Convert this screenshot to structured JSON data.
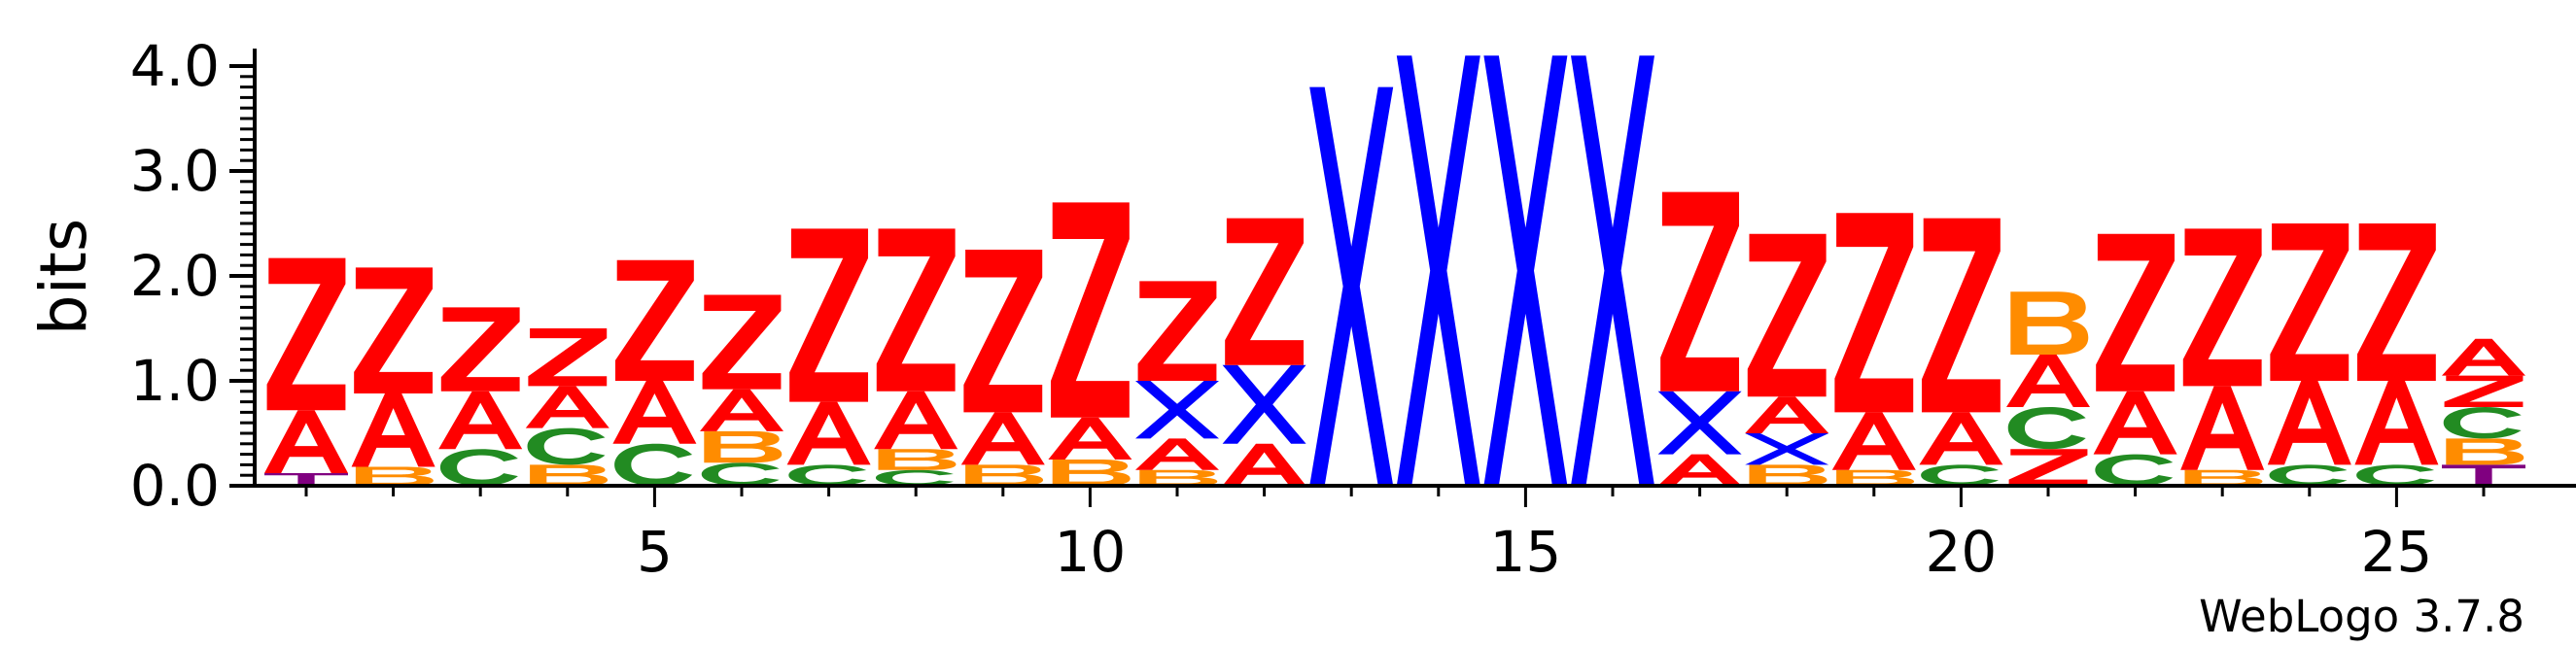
{
  "chart_data": {
    "type": "sequence-logo",
    "ylabel": "bits",
    "ylim": [
      0,
      4.0
    ],
    "yticks": [
      "0.0",
      "1.0",
      "2.0",
      "3.0",
      "4.0"
    ],
    "xticks": [
      5,
      10,
      15,
      20,
      25
    ],
    "credit": "WebLogo 3.7.8",
    "colors": {
      "Z": "#ff0000",
      "A": "#ff0000",
      "X": "#0000ff",
      "C": "#228b22",
      "B": "#ff8c00",
      "T": "#800080"
    },
    "positions": [
      {
        "pos": 1,
        "stack": [
          [
            "T",
            0.12
          ],
          [
            "A",
            0.6
          ],
          [
            "Z",
            1.45
          ]
        ]
      },
      {
        "pos": 2,
        "stack": [
          [
            "B",
            0.18
          ],
          [
            "A",
            0.7
          ],
          [
            "Z",
            1.2
          ]
        ]
      },
      {
        "pos": 3,
        "stack": [
          [
            "C",
            0.35
          ],
          [
            "A",
            0.55
          ],
          [
            "Z",
            0.8
          ]
        ]
      },
      {
        "pos": 4,
        "stack": [
          [
            "B",
            0.2
          ],
          [
            "C",
            0.35
          ],
          [
            "A",
            0.4
          ],
          [
            "Z",
            0.55
          ]
        ]
      },
      {
        "pos": 5,
        "stack": [
          [
            "C",
            0.4
          ],
          [
            "A",
            0.6
          ],
          [
            "Z",
            1.15
          ]
        ]
      },
      {
        "pos": 6,
        "stack": [
          [
            "C",
            0.22
          ],
          [
            "B",
            0.3
          ],
          [
            "A",
            0.4
          ],
          [
            "Z",
            0.9
          ]
        ]
      },
      {
        "pos": 7,
        "stack": [
          [
            "C",
            0.2
          ],
          [
            "A",
            0.6
          ],
          [
            "Z",
            1.65
          ]
        ]
      },
      {
        "pos": 8,
        "stack": [
          [
            "C",
            0.15
          ],
          [
            "B",
            0.2
          ],
          [
            "A",
            0.55
          ],
          [
            "Z",
            1.55
          ]
        ]
      },
      {
        "pos": 9,
        "stack": [
          [
            "B",
            0.2
          ],
          [
            "A",
            0.5
          ],
          [
            "Z",
            1.55
          ]
        ]
      },
      {
        "pos": 10,
        "stack": [
          [
            "B",
            0.25
          ],
          [
            "A",
            0.4
          ],
          [
            "Z",
            2.05
          ]
        ]
      },
      {
        "pos": 11,
        "stack": [
          [
            "B",
            0.15
          ],
          [
            "A",
            0.3
          ],
          [
            "X",
            0.55
          ],
          [
            "Z",
            0.95
          ]
        ]
      },
      {
        "pos": 12,
        "stack": [
          [
            "A",
            0.4
          ],
          [
            "X",
            0.75
          ],
          [
            "Z",
            1.4
          ]
        ]
      },
      {
        "pos": 13,
        "stack": [
          [
            "X",
            3.8
          ]
        ]
      },
      {
        "pos": 14,
        "stack": [
          [
            "X",
            4.1
          ]
        ]
      },
      {
        "pos": 15,
        "stack": [
          [
            "X",
            4.1
          ]
        ]
      },
      {
        "pos": 16,
        "stack": [
          [
            "X",
            4.1
          ]
        ]
      },
      {
        "pos": 17,
        "stack": [
          [
            "A",
            0.3
          ],
          [
            "X",
            0.6
          ],
          [
            "Z",
            1.9
          ]
        ]
      },
      {
        "pos": 18,
        "stack": [
          [
            "B",
            0.2
          ],
          [
            "X",
            0.3
          ],
          [
            "A",
            0.35
          ],
          [
            "Z",
            1.55
          ]
        ]
      },
      {
        "pos": 19,
        "stack": [
          [
            "B",
            0.15
          ],
          [
            "A",
            0.55
          ],
          [
            "Z",
            1.9
          ]
        ]
      },
      {
        "pos": 20,
        "stack": [
          [
            "C",
            0.2
          ],
          [
            "A",
            0.5
          ],
          [
            "Z",
            1.85
          ]
        ]
      },
      {
        "pos": 21,
        "stack": [
          [
            "Z",
            0.35
          ],
          [
            "C",
            0.4
          ],
          [
            "A",
            0.5
          ],
          [
            "B",
            0.6
          ]
        ]
      },
      {
        "pos": 22,
        "stack": [
          [
            "C",
            0.3
          ],
          [
            "A",
            0.6
          ],
          [
            "Z",
            1.5
          ]
        ]
      },
      {
        "pos": 23,
        "stack": [
          [
            "B",
            0.15
          ],
          [
            "A",
            0.8
          ],
          [
            "Z",
            1.5
          ]
        ]
      },
      {
        "pos": 24,
        "stack": [
          [
            "C",
            0.2
          ],
          [
            "A",
            0.8
          ],
          [
            "Z",
            1.5
          ]
        ]
      },
      {
        "pos": 25,
        "stack": [
          [
            "C",
            0.2
          ],
          [
            "A",
            0.8
          ],
          [
            "Z",
            1.5
          ]
        ]
      },
      {
        "pos": 26,
        "stack": [
          [
            "T",
            0.2
          ],
          [
            "B",
            0.25
          ],
          [
            "C",
            0.3
          ],
          [
            "Z",
            0.3
          ],
          [
            "A",
            0.35
          ]
        ]
      }
    ]
  }
}
